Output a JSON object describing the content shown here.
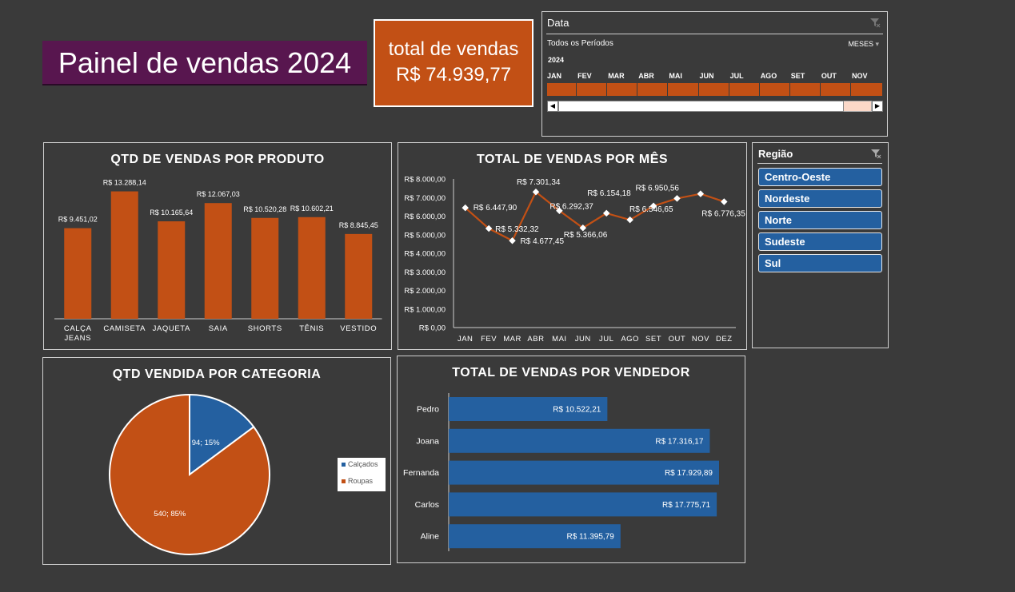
{
  "header": {
    "title": "Painel de vendas 2024"
  },
  "kpi": {
    "label": "total de vendas",
    "value": "R$ 74.939,77"
  },
  "date_slicer": {
    "title": "Data",
    "period_label": "Todos os Períodos",
    "unit_label": "MESES",
    "year": "2024",
    "months": [
      "JAN",
      "FEV",
      "MAR",
      "ABR",
      "MAI",
      "JUN",
      "JUL",
      "AGO",
      "SET",
      "OUT",
      "NOV"
    ]
  },
  "region_slicer": {
    "title": "Região",
    "items": [
      "Centro-Oeste",
      "Nordeste",
      "Norte",
      "Sudeste",
      "Sul"
    ]
  },
  "colors": {
    "accent": "#c25015",
    "blue": "#2460a0",
    "title_bg": "#58164f",
    "background": "#3a3a3a"
  },
  "chart_data": [
    {
      "type": "bar",
      "title": "QTD DE VENDAS POR PRODUTO",
      "categories": [
        "CALÇA JEANS",
        "CAMISETA",
        "JAQUETA",
        "SAIA",
        "SHORTS",
        "TÊNIS",
        "VESTIDO"
      ],
      "values": [
        9451.02,
        13288.14,
        10165.64,
        12067.03,
        10520.28,
        10602.21,
        8845.45
      ],
      "labels": [
        "R$ 9.451,02",
        "R$ 13.288,14",
        "R$ 10.165,64",
        "R$ 12.067,03",
        "R$ 10.520,28",
        "R$ 10.602,21",
        "R$ 8.845,45"
      ],
      "ylim": [
        0,
        15000
      ]
    },
    {
      "type": "line",
      "title": "TOTAL DE VENDAS POR MÊS",
      "categories": [
        "JAN",
        "FEV",
        "MAR",
        "ABR",
        "MAI",
        "JUN",
        "JUL",
        "AGO",
        "SET",
        "OUT",
        "NOV",
        "DEZ"
      ],
      "values": [
        6447.9,
        5332.32,
        4677.45,
        7301.34,
        6292.37,
        5366.06,
        6154.18,
        5800,
        6546.65,
        6950.56,
        7200,
        6776.35
      ],
      "point_labels": [
        "R$ 6.447,90",
        "R$ 5.332,32",
        "R$ 4.677,45",
        "R$ 7.301,34",
        "R$ 6.292,37",
        "R$ 5.366,06",
        "R$ 6.154,18",
        "",
        "R$ 6.546,65",
        "R$ 6.950,56",
        "",
        "R$ 6.776,35"
      ],
      "yticks": [
        "R$ 0,00",
        "R$ 1.000,00",
        "R$ 2.000,00",
        "R$ 3.000,00",
        "R$ 4.000,00",
        "R$ 5.000,00",
        "R$ 6.000,00",
        "R$ 7.000,00",
        "R$ 8.000,00"
      ],
      "ylim": [
        0,
        8000
      ]
    },
    {
      "type": "pie",
      "title": "QTD VENDIDA POR CATEGORIA",
      "categories": [
        "Calçados",
        "Roupas"
      ],
      "values": [
        94,
        540
      ],
      "labels": [
        "94; 15%",
        "540; 85%"
      ],
      "colors": [
        "#2460a0",
        "#c25015"
      ],
      "legend": "right"
    },
    {
      "type": "bar",
      "orientation": "horizontal",
      "title": "TOTAL DE VENDAS POR VENDEDOR",
      "categories": [
        "Pedro",
        "Joana",
        "Fernanda",
        "Carlos",
        "Aline"
      ],
      "values": [
        10522.21,
        17316.17,
        17929.89,
        17775.71,
        11395.79
      ],
      "labels": [
        "R$ 10.522,21",
        "R$ 17.316,17",
        "R$ 17.929,89",
        "R$ 17.775,71",
        "R$ 11.395,79"
      ]
    }
  ]
}
